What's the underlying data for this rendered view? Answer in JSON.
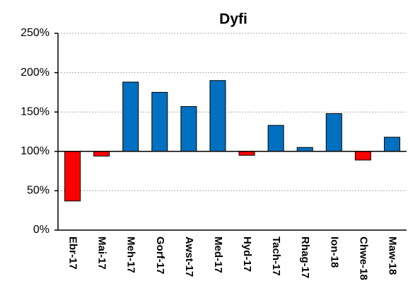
{
  "chart_data": {
    "type": "bar",
    "title": "Dyfi",
    "categories": [
      "Ebr-17",
      "Mai-17",
      "Meh-17",
      "Gorf-17",
      "Awst-17",
      "Med-17",
      "Hyd-17",
      "Tach-17",
      "Rhag-17",
      "Ion-18",
      "Chwe-18",
      "Maw-18"
    ],
    "values": [
      37,
      94,
      188,
      175,
      157,
      190,
      95,
      133,
      105,
      148,
      89,
      118
    ],
    "colors": [
      "#ff0000",
      "#ff0000",
      "#0070c0",
      "#0070c0",
      "#0070c0",
      "#0070c0",
      "#ff0000",
      "#0070c0",
      "#0070c0",
      "#0070c0",
      "#ff0000",
      "#0070c0"
    ],
    "baseline": 100,
    "ylim": [
      0,
      250
    ],
    "yticks": [
      {
        "value": 0,
        "label": "0%"
      },
      {
        "value": 50,
        "label": "50%"
      },
      {
        "value": 100,
        "label": "100%"
      },
      {
        "value": 150,
        "label": "150%"
      },
      {
        "value": 200,
        "label": "200%"
      },
      {
        "value": 250,
        "label": "250%"
      }
    ],
    "grid": true
  }
}
